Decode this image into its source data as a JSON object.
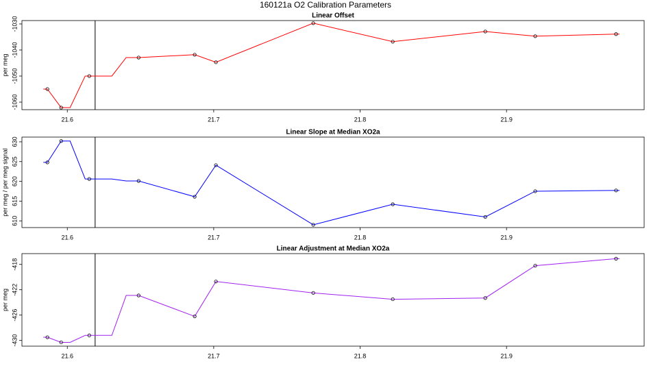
{
  "title": "160121a   O2 Calibration Parameters",
  "chart_data": [
    {
      "type": "line",
      "title": "Linear Offset",
      "ylabel": "per meg",
      "xlim": [
        21.569,
        21.994
      ],
      "ylim": [
        -1062.9,
        -1028.7
      ],
      "xticks": [
        21.6,
        21.7,
        21.8,
        21.9
      ],
      "yticks": [
        -1030,
        -1040,
        -1050,
        -1060
      ],
      "vline": 21.619,
      "series": [
        {
          "style": "line",
          "color": "#ff0000",
          "x": [
            21.5836,
            21.5864,
            21.5958,
            21.6019,
            21.6122,
            21.6304,
            21.6402,
            21.6487,
            21.687,
            21.7015,
            21.768,
            21.8223,
            21.8855,
            21.9196,
            21.9748,
            21.9772
          ],
          "values": [
            -1055.0,
            -1055.0,
            -1062.1,
            -1062.1,
            -1050.0,
            -1050.0,
            -1042.9,
            -1042.9,
            -1041.8,
            -1044.7,
            -1029.7,
            -1036.8,
            -1032.9,
            -1034.7,
            -1033.9,
            -1033.9
          ]
        },
        {
          "style": "points",
          "color": "#000000",
          "x": [
            21.5864,
            21.5958,
            21.615,
            21.6487,
            21.687,
            21.7015,
            21.768,
            21.8223,
            21.8855,
            21.9196,
            21.9748
          ],
          "values": [
            -1055.0,
            -1062.1,
            -1050.0,
            -1042.9,
            -1041.8,
            -1044.7,
            -1029.7,
            -1036.8,
            -1032.9,
            -1034.7,
            -1033.9
          ]
        }
      ]
    },
    {
      "type": "line",
      "title": "Linear Slope at Median XO2a",
      "ylabel": "per meg / per meg signal",
      "xlim": [
        21.569,
        21.994
      ],
      "ylim": [
        608.3,
        631.2
      ],
      "xticks": [
        21.6,
        21.7,
        21.8,
        21.9
      ],
      "yticks": [
        630,
        625,
        620,
        615,
        610
      ],
      "vline": 21.619,
      "series": [
        {
          "style": "line",
          "color": "#0000ff",
          "x": [
            21.5836,
            21.5864,
            21.5958,
            21.6019,
            21.6122,
            21.6304,
            21.6402,
            21.6487,
            21.687,
            21.7015,
            21.768,
            21.8223,
            21.8855,
            21.9196,
            21.9748,
            21.9772
          ],
          "values": [
            624.8,
            624.8,
            630.2,
            630.2,
            620.6,
            620.6,
            620.1,
            620.1,
            616.1,
            624.1,
            609.0,
            614.2,
            611.0,
            617.5,
            617.7,
            617.7
          ]
        },
        {
          "style": "points",
          "color": "#000000",
          "x": [
            21.5864,
            21.5958,
            21.615,
            21.6487,
            21.687,
            21.7015,
            21.768,
            21.8223,
            21.8855,
            21.9196,
            21.9748
          ],
          "values": [
            624.8,
            630.2,
            620.6,
            620.1,
            616.1,
            624.1,
            609.0,
            614.2,
            611.0,
            617.5,
            617.7
          ]
        }
      ]
    },
    {
      "type": "line",
      "title": "Linear Adjustment at Median XO2a",
      "ylabel": "per meg",
      "xlim": [
        21.569,
        21.994
      ],
      "ylim": [
        -430.9,
        -416.3
      ],
      "xticks": [
        21.6,
        21.7,
        21.8,
        21.9
      ],
      "yticks": [
        -418,
        -422,
        -426,
        -430
      ],
      "vline": 21.619,
      "series": [
        {
          "style": "line",
          "color": "#a020f0",
          "x": [
            21.5836,
            21.5864,
            21.5958,
            21.6019,
            21.6122,
            21.6304,
            21.6402,
            21.6487,
            21.687,
            21.7015,
            21.768,
            21.8223,
            21.8855,
            21.9196,
            21.9748,
            21.9772
          ],
          "values": [
            -429.5,
            -429.5,
            -430.3,
            -430.3,
            -429.2,
            -429.2,
            -422.9,
            -422.9,
            -426.2,
            -420.7,
            -422.5,
            -423.5,
            -423.3,
            -418.2,
            -417.1,
            -417.1
          ]
        },
        {
          "style": "points",
          "color": "#000000",
          "x": [
            21.5864,
            21.5958,
            21.615,
            21.6487,
            21.687,
            21.7015,
            21.768,
            21.8223,
            21.8855,
            21.9196,
            21.9748
          ],
          "values": [
            -429.5,
            -430.3,
            -429.2,
            -422.9,
            -426.2,
            -420.7,
            -422.5,
            -423.5,
            -423.3,
            -418.2,
            -417.1
          ]
        }
      ]
    }
  ]
}
